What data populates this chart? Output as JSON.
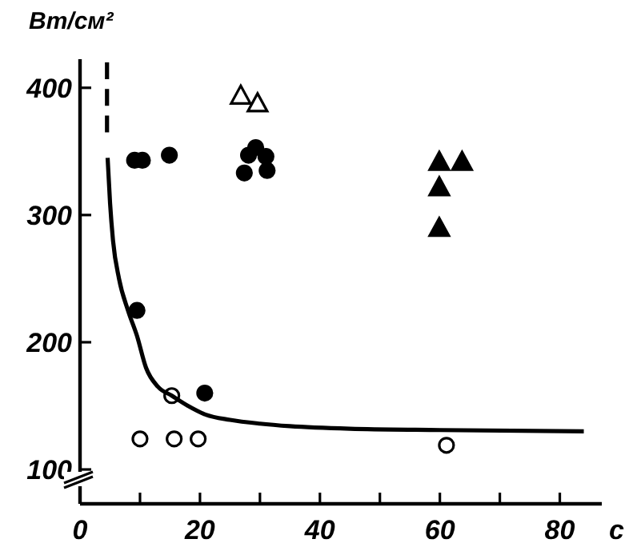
{
  "chart_data": {
    "type": "scatter",
    "ylabel": "Вт/см²",
    "xlabel": "с",
    "xlim": [
      0,
      87
    ],
    "ylim": [
      73,
      425
    ],
    "xticks": [
      0,
      {
        "value": 10,
        "label": null
      },
      20,
      {
        "value": 30,
        "label": null
      },
      40,
      {
        "value": 50,
        "label": null
      },
      60,
      {
        "value": 70,
        "label": null
      },
      80
    ],
    "yticks": [
      100,
      200,
      300,
      400
    ],
    "grid": false,
    "series": [
      {
        "marker": "circle",
        "color": "#000000",
        "x": [
          9.1,
          10.4,
          14.9,
          9.5,
          20.8,
          27.4,
          28.1,
          29.3,
          31,
          31.2
        ],
        "values": [
          343,
          343,
          347,
          225,
          160,
          333,
          347,
          353,
          346,
          335
        ]
      },
      {
        "marker": "circle",
        "color": "#ffffff",
        "x": [
          10,
          15.7,
          19.7,
          15.3,
          61.1
        ],
        "values": [
          124,
          124,
          124,
          158,
          119
        ]
      },
      {
        "marker": "triangle",
        "color": "#ffffff",
        "x": [
          26.8,
          29.6
        ],
        "values": [
          394,
          388
        ]
      },
      {
        "marker": "triangle",
        "color": "#000000",
        "x": [
          59.9,
          63.7,
          59.9,
          59.9
        ],
        "values": [
          342,
          342,
          322,
          290
        ]
      },
      {
        "type": "line",
        "line_style": "solid",
        "color": "#000000",
        "x": [
          4.6,
          5,
          5.5,
          6.5,
          8,
          9.5,
          11,
          13,
          15.3,
          18,
          21,
          25,
          30,
          35,
          45,
          60,
          84
        ],
        "values": [
          345,
          310,
          280,
          250,
          225,
          205,
          180,
          165,
          158,
          150,
          143,
          139,
          136,
          134,
          132,
          131,
          130
        ]
      },
      {
        "type": "line",
        "line_style": "dashed",
        "color": "#000000",
        "x": [
          4.5,
          4.5
        ],
        "values": [
          420,
          365
        ]
      }
    ]
  }
}
